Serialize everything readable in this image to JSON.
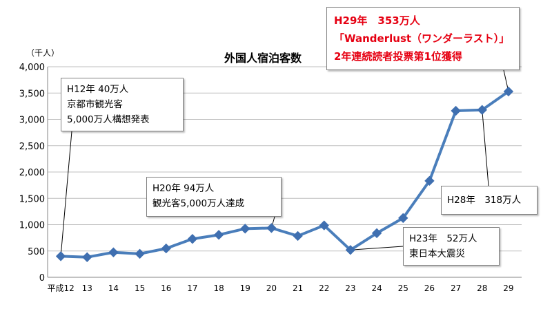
{
  "chart_data": {
    "type": "line",
    "title": "外国人宿泊客数",
    "unit_label": "（千人）",
    "categories": [
      "平成12",
      "13",
      "14",
      "15",
      "16",
      "17",
      "18",
      "19",
      "20",
      "21",
      "22",
      "23",
      "24",
      "25",
      "26",
      "27",
      "28",
      "29"
    ],
    "series": [
      {
        "values": [
          400,
          382,
          474,
          446,
          548,
          729,
          806,
          924,
          936,
          785,
          986,
          519,
          838,
          1126,
          1832,
          3163,
          3180,
          3530
        ]
      }
    ],
    "ylim": [
      0,
      4000
    ],
    "yticks": [
      "0",
      "500",
      "1,000",
      "1,500",
      "2,000",
      "2,500",
      "3,000",
      "3,500",
      "4,000"
    ],
    "grid": true,
    "legend": "none",
    "line_color": "#4a7ebb",
    "marker_color": "#3f6fb0",
    "annotations": [
      {
        "lines": [
          "H12年 40万人",
          "京都市観光客",
          "5,000万人構想発表"
        ]
      },
      {
        "lines": [
          "H20年 94万人",
          "観光客5,000万人達成"
        ]
      },
      {
        "lines": [
          "H23年　52万人",
          "東日本大震災"
        ]
      },
      {
        "lines": [
          "H28年　318万人"
        ]
      },
      {
        "lines": [
          "H29年　353万人",
          "「Wanderlust（ワンダーラスト）」",
          "2年連続読者投票第1位獲得"
        ],
        "color": "#e60012"
      }
    ]
  }
}
